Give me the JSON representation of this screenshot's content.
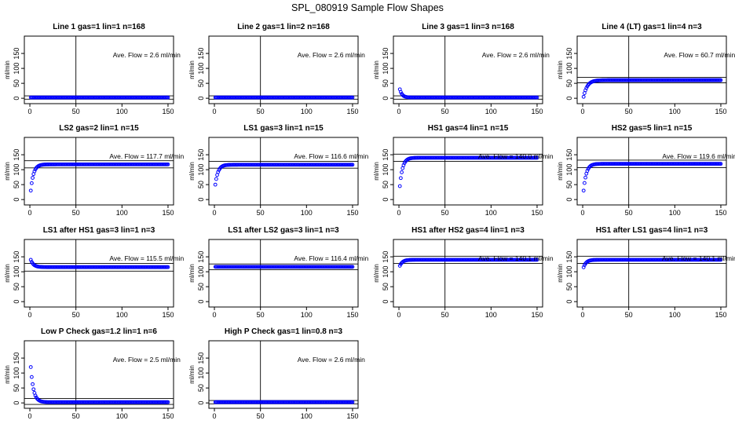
{
  "figure": {
    "title": "SPL_080919  Sample Flow Shapes"
  },
  "chart_data": [
    {
      "type": "scatter",
      "title": "Line 1 gas=1 lin=1 n=168",
      "ylabel": "ml/min",
      "xlabel": "",
      "xlim": [
        0,
        150
      ],
      "ylim": [
        0,
        200
      ],
      "xticks": [
        0,
        50,
        100,
        150
      ],
      "yticks": [
        0,
        50,
        100,
        150
      ],
      "annotation": "Ave. Flow =  2.6  ml/min",
      "vline": 50,
      "hlines": [
        8,
        -3
      ],
      "series": [
        {
          "shape": "flat",
          "y0": 2.6,
          "plateau": 2.6,
          "tau": 1
        }
      ]
    },
    {
      "type": "scatter",
      "title": "Line 2 gas=1 lin=2 n=168",
      "ylabel": "ml/min",
      "xlabel": "",
      "xlim": [
        0,
        150
      ],
      "ylim": [
        0,
        200
      ],
      "xticks": [
        0,
        50,
        100,
        150
      ],
      "yticks": [
        0,
        50,
        100,
        150
      ],
      "annotation": "Ave. Flow =  2.6  ml/min",
      "vline": 50,
      "hlines": [
        8,
        -3
      ],
      "series": [
        {
          "shape": "flat",
          "y0": 2.6,
          "plateau": 2.6,
          "tau": 1
        }
      ]
    },
    {
      "type": "scatter",
      "title": "Line 3 gas=1 lin=3 n=168",
      "ylabel": "ml/min",
      "xlabel": "",
      "xlim": [
        0,
        150
      ],
      "ylim": [
        0,
        200
      ],
      "xticks": [
        0,
        50,
        100,
        150
      ],
      "yticks": [
        0,
        50,
        100,
        150
      ],
      "annotation": "Ave. Flow =  2.6  ml/min",
      "vline": 50,
      "hlines": [
        8,
        -3
      ],
      "series": [
        {
          "shape": "decay",
          "y0": 30,
          "plateau": 2.6,
          "tau": 2.5
        }
      ]
    },
    {
      "type": "scatter",
      "title": "Line 4 (LT) gas=1 lin=4 n=3",
      "ylabel": "ml/min",
      "xlabel": "",
      "xlim": [
        0,
        150
      ],
      "ylim": [
        0,
        200
      ],
      "xticks": [
        0,
        50,
        100,
        150
      ],
      "yticks": [
        0,
        50,
        100,
        150
      ],
      "annotation": "Ave. Flow =  60.7  ml/min",
      "vline": 50,
      "hlines": [
        70,
        52
      ],
      "series": [
        {
          "shape": "rise",
          "y0": 5,
          "plateau": 60.7,
          "tau": 4
        }
      ]
    },
    {
      "type": "scatter",
      "title": "LS2 gas=2 lin=1 n=15",
      "ylabel": "ml/min",
      "xlabel": "",
      "xlim": [
        0,
        150
      ],
      "ylim": [
        0,
        200
      ],
      "xticks": [
        0,
        50,
        100,
        150
      ],
      "yticks": [
        0,
        50,
        100,
        150
      ],
      "annotation": "Ave. Flow =  117.7  ml/min",
      "vline": 50,
      "hlines": [
        130,
        106
      ],
      "series": [
        {
          "shape": "rise",
          "y0": 30,
          "plateau": 117.7,
          "tau": 3
        }
      ]
    },
    {
      "type": "scatter",
      "title": "LS1 gas=3 lin=1 n=15",
      "ylabel": "ml/min",
      "xlabel": "",
      "xlim": [
        0,
        150
      ],
      "ylim": [
        0,
        200
      ],
      "xticks": [
        0,
        50,
        100,
        150
      ],
      "yticks": [
        0,
        50,
        100,
        150
      ],
      "annotation": "Ave. Flow =  116.6  ml/min",
      "vline": 50,
      "hlines": [
        128,
        105
      ],
      "series": [
        {
          "shape": "rise",
          "y0": 50,
          "plateau": 116.6,
          "tau": 3
        }
      ]
    },
    {
      "type": "scatter",
      "title": "HS1 gas=4 lin=1 n=15",
      "ylabel": "ml/min",
      "xlabel": "",
      "xlim": [
        0,
        150
      ],
      "ylim": [
        0,
        200
      ],
      "xticks": [
        0,
        50,
        100,
        150
      ],
      "yticks": [
        0,
        50,
        100,
        150
      ],
      "annotation": "Ave. Flow =  140.0  ml/min",
      "vline": 50,
      "hlines": [
        152,
        128
      ],
      "series": [
        {
          "shape": "rise",
          "y0": 45,
          "plateau": 140,
          "tau": 3
        }
      ]
    },
    {
      "type": "scatter",
      "title": "HS2 gas=5 lin=1 n=15",
      "ylabel": "ml/min",
      "xlabel": "",
      "xlim": [
        0,
        150
      ],
      "ylim": [
        0,
        200
      ],
      "xticks": [
        0,
        50,
        100,
        150
      ],
      "yticks": [
        0,
        50,
        100,
        150
      ],
      "annotation": "Ave. Flow =  119.6  ml/min",
      "vline": 50,
      "hlines": [
        132,
        107
      ],
      "series": [
        {
          "shape": "rise",
          "y0": 30,
          "plateau": 119.6,
          "tau": 3
        }
      ]
    },
    {
      "type": "scatter",
      "title": "LS1 after HS1 gas=3 lin=1 n=3",
      "ylabel": "ml/min",
      "xlabel": "",
      "xlim": [
        0,
        150
      ],
      "ylim": [
        0,
        200
      ],
      "xticks": [
        0,
        50,
        100,
        150
      ],
      "yticks": [
        0,
        50,
        100,
        150
      ],
      "annotation": "Ave. Flow =  115.5  ml/min",
      "vline": 50,
      "hlines": [
        128,
        102
      ],
      "series": [
        {
          "shape": "decay",
          "y0": 140,
          "plateau": 115.5,
          "tau": 3
        }
      ]
    },
    {
      "type": "scatter",
      "title": "LS1 after LS2 gas=3 lin=1 n=3",
      "ylabel": "ml/min",
      "xlabel": "",
      "xlim": [
        0,
        150
      ],
      "ylim": [
        0,
        200
      ],
      "xticks": [
        0,
        50,
        100,
        150
      ],
      "yticks": [
        0,
        50,
        100,
        150
      ],
      "annotation": "Ave. Flow =  116.4  ml/min",
      "vline": 50,
      "hlines": [
        126,
        107
      ],
      "series": [
        {
          "shape": "flat",
          "y0": 116.4,
          "plateau": 116.4,
          "tau": 1
        }
      ]
    },
    {
      "type": "scatter",
      "title": "HS1 after HS2 gas=4 lin=1 n=3",
      "ylabel": "ml/min",
      "xlabel": "",
      "xlim": [
        0,
        150
      ],
      "ylim": [
        0,
        200
      ],
      "xticks": [
        0,
        50,
        100,
        150
      ],
      "yticks": [
        0,
        50,
        100,
        150
      ],
      "annotation": "Ave. Flow =  140.1  ml/min",
      "vline": 50,
      "hlines": [
        152,
        128
      ],
      "series": [
        {
          "shape": "rise",
          "y0": 120,
          "plateau": 140.1,
          "tau": 3
        }
      ]
    },
    {
      "type": "scatter",
      "title": "HS1 after LS1 gas=4 lin=1 n=3",
      "ylabel": "ml/min",
      "xlabel": "",
      "xlim": [
        0,
        150
      ],
      "ylim": [
        0,
        200
      ],
      "xticks": [
        0,
        50,
        100,
        150
      ],
      "yticks": [
        0,
        50,
        100,
        150
      ],
      "annotation": "Ave. Flow =  140.1  ml/min",
      "vline": 50,
      "hlines": [
        152,
        128
      ],
      "series": [
        {
          "shape": "rise",
          "y0": 115,
          "plateau": 140.1,
          "tau": 3
        }
      ]
    },
    {
      "type": "scatter",
      "title": "Low P Check gas=1.2 lin=1 n=6",
      "ylabel": "ml/min",
      "xlabel": "",
      "xlim": [
        0,
        150
      ],
      "ylim": [
        0,
        200
      ],
      "xticks": [
        0,
        50,
        100,
        150
      ],
      "yticks": [
        0,
        50,
        100,
        150
      ],
      "annotation": "Ave. Flow =  2.5  ml/min",
      "vline": 50,
      "hlines": [
        15,
        -5
      ],
      "series": [
        {
          "shape": "decay",
          "y0": 120,
          "plateau": 2.5,
          "tau": 3
        }
      ]
    },
    {
      "type": "scatter",
      "title": "High P Check gas=1 lin=0.8 n=3",
      "ylabel": "ml/min",
      "xlabel": "",
      "xlim": [
        0,
        150
      ],
      "ylim": [
        0,
        200
      ],
      "xticks": [
        0,
        50,
        100,
        150
      ],
      "yticks": [
        0,
        50,
        100,
        150
      ],
      "annotation": "Ave. Flow =  2.6  ml/min",
      "vline": 50,
      "hlines": [
        8,
        -3
      ],
      "series": [
        {
          "shape": "flat",
          "y0": 2.6,
          "plateau": 2.6,
          "tau": 1
        }
      ]
    }
  ],
  "colors": {
    "points": "#0000ff",
    "axes": "#000000",
    "background": "#ffffff"
  }
}
